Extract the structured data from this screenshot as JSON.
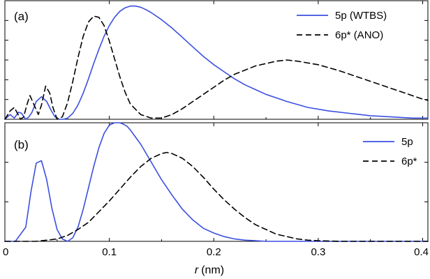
{
  "chart_data": [
    {
      "type": "line",
      "panel_label": "(a)",
      "xlim": [
        0,
        0.405
      ],
      "ylim": [
        0,
        1
      ],
      "y_tick_labels_shown": false,
      "legend_position": "top-right",
      "series": [
        {
          "name": "5p (WTBS)",
          "color": "#3b4fe0",
          "dash": "solid",
          "x": [
            0,
            0.005,
            0.009,
            0.013,
            0.016,
            0.02,
            0.023,
            0.026,
            0.03,
            0.035,
            0.04,
            0.044,
            0.048,
            0.052,
            0.056,
            0.06,
            0.065,
            0.07,
            0.075,
            0.08,
            0.085,
            0.09,
            0.095,
            0.1,
            0.105,
            0.11,
            0.115,
            0.12,
            0.125,
            0.13,
            0.135,
            0.14,
            0.15,
            0.16,
            0.17,
            0.18,
            0.19,
            0.2,
            0.21,
            0.22,
            0.23,
            0.24,
            0.25,
            0.27,
            0.29,
            0.31,
            0.33,
            0.35,
            0.37,
            0.39,
            0.405
          ],
          "y": [
            0,
            0.04,
            0.01,
            0.06,
            0.05,
            0.0,
            0.02,
            0.06,
            0.15,
            0.19,
            0.15,
            0.08,
            0.02,
            0.0,
            0.0,
            0.01,
            0.05,
            0.12,
            0.22,
            0.34,
            0.47,
            0.59,
            0.7,
            0.79,
            0.86,
            0.91,
            0.94,
            0.955,
            0.955,
            0.945,
            0.925,
            0.9,
            0.84,
            0.77,
            0.69,
            0.61,
            0.53,
            0.46,
            0.4,
            0.34,
            0.29,
            0.25,
            0.21,
            0.15,
            0.1,
            0.07,
            0.05,
            0.03,
            0.02,
            0.01,
            0.01
          ]
        },
        {
          "name": "6p* (ANO)",
          "color": "#000000",
          "dash": "dashed",
          "x": [
            0,
            0.005,
            0.009,
            0.012,
            0.015,
            0.018,
            0.021,
            0.024,
            0.028,
            0.032,
            0.035,
            0.039,
            0.043,
            0.046,
            0.05,
            0.055,
            0.06,
            0.065,
            0.07,
            0.075,
            0.08,
            0.085,
            0.09,
            0.095,
            0.1,
            0.105,
            0.11,
            0.115,
            0.12,
            0.13,
            0.14,
            0.15,
            0.16,
            0.17,
            0.18,
            0.19,
            0.2,
            0.21,
            0.22,
            0.24,
            0.26,
            0.27,
            0.28,
            0.3,
            0.32,
            0.34,
            0.36,
            0.38,
            0.4,
            0.405
          ],
          "y": [
            0,
            0.07,
            0.1,
            0.05,
            0.0,
            0.02,
            0.12,
            0.2,
            0.12,
            0.04,
            0.12,
            0.28,
            0.22,
            0.1,
            0.0,
            0.02,
            0.14,
            0.32,
            0.52,
            0.7,
            0.82,
            0.87,
            0.86,
            0.79,
            0.66,
            0.51,
            0.36,
            0.23,
            0.13,
            0.04,
            0.01,
            0.01,
            0.04,
            0.09,
            0.15,
            0.21,
            0.27,
            0.33,
            0.38,
            0.45,
            0.49,
            0.5,
            0.49,
            0.46,
            0.41,
            0.35,
            0.29,
            0.23,
            0.17,
            0.16
          ]
        }
      ]
    },
    {
      "type": "line",
      "panel_label": "(b)",
      "xlim": [
        0,
        0.405
      ],
      "ylim": [
        0,
        1
      ],
      "xlabel_var": "r",
      "xlabel_unit": "(nm)",
      "x_ticks": [
        0,
        0.1,
        0.2,
        0.3,
        0.4
      ],
      "x_tick_labels": [
        "0",
        "0.1",
        "0.2",
        "0.3",
        "0.4"
      ],
      "y_tick_labels_shown": false,
      "legend_position": "top-right",
      "series": [
        {
          "name": "5p",
          "color": "#3b4fe0",
          "dash": "solid",
          "x": [
            0,
            0.01,
            0.02,
            0.025,
            0.03,
            0.035,
            0.04,
            0.045,
            0.05,
            0.055,
            0.06,
            0.065,
            0.07,
            0.075,
            0.08,
            0.085,
            0.09,
            0.095,
            0.1,
            0.105,
            0.11,
            0.113,
            0.117,
            0.12,
            0.125,
            0.13,
            0.14,
            0.15,
            0.16,
            0.17,
            0.18,
            0.19,
            0.2,
            0.21,
            0.22,
            0.23,
            0.24,
            0.25,
            0.26,
            0.28,
            0.3,
            0.35,
            0.405
          ],
          "y": [
            0,
            0.0,
            0.12,
            0.42,
            0.66,
            0.68,
            0.52,
            0.28,
            0.1,
            0.02,
            0.0,
            0.03,
            0.12,
            0.27,
            0.45,
            0.63,
            0.79,
            0.91,
            0.98,
            1.0,
            1.0,
            0.99,
            0.97,
            0.94,
            0.88,
            0.82,
            0.67,
            0.52,
            0.39,
            0.27,
            0.18,
            0.11,
            0.07,
            0.04,
            0.02,
            0.01,
            0.005,
            0.0,
            0.0,
            0.0,
            0.0,
            0.0,
            0.0
          ]
        },
        {
          "name": "6p*",
          "color": "#000000",
          "dash": "dashed",
          "x": [
            0,
            0.03,
            0.04,
            0.05,
            0.06,
            0.07,
            0.08,
            0.09,
            0.1,
            0.11,
            0.12,
            0.13,
            0.14,
            0.15,
            0.155,
            0.16,
            0.17,
            0.18,
            0.19,
            0.2,
            0.21,
            0.22,
            0.23,
            0.24,
            0.25,
            0.26,
            0.27,
            0.28,
            0.29,
            0.3,
            0.32,
            0.34,
            0.36,
            0.38,
            0.405
          ],
          "y": [
            0,
            0.0,
            0.01,
            0.02,
            0.05,
            0.1,
            0.16,
            0.25,
            0.34,
            0.44,
            0.54,
            0.63,
            0.7,
            0.74,
            0.75,
            0.74,
            0.7,
            0.63,
            0.54,
            0.44,
            0.35,
            0.27,
            0.2,
            0.14,
            0.1,
            0.06,
            0.04,
            0.02,
            0.01,
            0.005,
            0.0,
            0.0,
            0.0,
            0.0,
            0.0
          ]
        }
      ]
    }
  ]
}
